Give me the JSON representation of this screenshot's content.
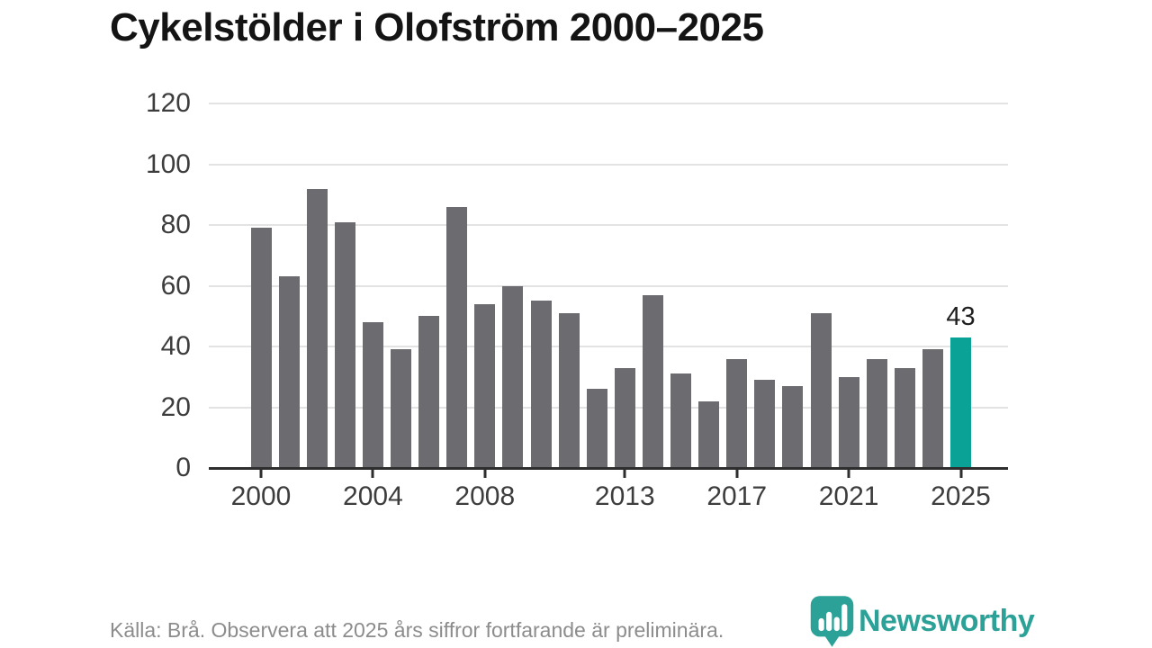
{
  "title": "Cykelstölder i Olofström 2000–2025",
  "footer": {
    "source_note": "Källa: Brå. Observera att 2025 års siffror fortfarande är preliminära."
  },
  "logo": {
    "name": "Newsworthy"
  },
  "colors": {
    "bar": "#6c6b70",
    "highlight": "#0aa296",
    "grid": "#e3e3e3",
    "axis": "#2e2e2e",
    "title": "#141414",
    "tick_label": "#3d3d3d",
    "footer_text": "#8c8c8c",
    "logo": "#2ba197"
  },
  "chart_data": {
    "type": "bar",
    "title": "Cykelstölder i Olofström 2000–2025",
    "categories": [
      2000,
      2001,
      2002,
      2003,
      2004,
      2005,
      2006,
      2007,
      2008,
      2009,
      2010,
      2011,
      2012,
      2013,
      2014,
      2015,
      2016,
      2017,
      2018,
      2019,
      2020,
      2021,
      2022,
      2023,
      2024,
      2025
    ],
    "values": [
      79,
      63,
      92,
      81,
      48,
      39,
      50,
      86,
      54,
      60,
      55,
      51,
      26,
      33,
      57,
      31,
      22,
      36,
      29,
      27,
      51,
      30,
      36,
      33,
      39,
      43
    ],
    "highlight_index": 25,
    "highlight_label": "43",
    "x_tick_years": [
      2000,
      2004,
      2008,
      2013,
      2017,
      2021,
      2025
    ],
    "y_ticks": [
      0,
      20,
      40,
      60,
      80,
      100,
      120
    ],
    "ylim": [
      0,
      120
    ],
    "grid": "horizontal",
    "legend": "none"
  }
}
